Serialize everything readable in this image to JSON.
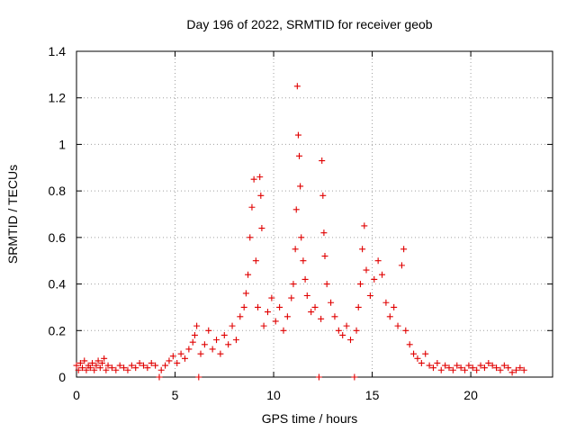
{
  "chart_data": {
    "type": "scatter",
    "title": "Day 196 of 2022, SRMTID for receiver geob",
    "xlabel": "GPS time / hours",
    "ylabel": "SRMTID / TECUs",
    "xlim": [
      0,
      24.15
    ],
    "ylim": [
      0,
      1.4
    ],
    "xticks": [
      0,
      5,
      10,
      15,
      20
    ],
    "xtick_labels": [
      "0",
      "5",
      "10",
      "15",
      "20"
    ],
    "yticks": [
      0,
      0.2,
      0.4,
      0.6,
      0.8,
      1.0,
      1.2,
      1.4
    ],
    "ytick_labels": [
      "0",
      "0.2",
      "0.4",
      "0.6",
      "0.8",
      "1",
      "1.2",
      "1.4"
    ],
    "grid": true,
    "marker": "+",
    "color": "#e00000",
    "series": [
      {
        "name": "SRMTID",
        "points": [
          [
            0.0,
            0.05
          ],
          [
            0.1,
            0.03
          ],
          [
            0.2,
            0.06
          ],
          [
            0.3,
            0.04
          ],
          [
            0.4,
            0.07
          ],
          [
            0.5,
            0.03
          ],
          [
            0.6,
            0.05
          ],
          [
            0.7,
            0.04
          ],
          [
            0.8,
            0.06
          ],
          [
            0.9,
            0.03
          ],
          [
            1.0,
            0.05
          ],
          [
            1.1,
            0.07
          ],
          [
            1.2,
            0.04
          ],
          [
            1.3,
            0.06
          ],
          [
            1.4,
            0.08
          ],
          [
            1.5,
            0.03
          ],
          [
            1.6,
            0.05
          ],
          [
            1.8,
            0.04
          ],
          [
            2.0,
            0.03
          ],
          [
            2.2,
            0.05
          ],
          [
            2.4,
            0.04
          ],
          [
            2.6,
            0.03
          ],
          [
            2.8,
            0.05
          ],
          [
            3.0,
            0.04
          ],
          [
            3.2,
            0.06
          ],
          [
            3.4,
            0.05
          ],
          [
            3.6,
            0.04
          ],
          [
            3.8,
            0.06
          ],
          [
            4.0,
            0.05
          ],
          [
            4.2,
            0.0
          ],
          [
            4.3,
            0.03
          ],
          [
            4.5,
            0.05
          ],
          [
            4.7,
            0.07
          ],
          [
            4.9,
            0.09
          ],
          [
            5.1,
            0.06
          ],
          [
            5.3,
            0.1
          ],
          [
            5.5,
            0.08
          ],
          [
            5.7,
            0.12
          ],
          [
            5.9,
            0.15
          ],
          [
            6.0,
            0.18
          ],
          [
            6.1,
            0.22
          ],
          [
            6.2,
            0.0
          ],
          [
            6.3,
            0.1
          ],
          [
            6.5,
            0.14
          ],
          [
            6.7,
            0.2
          ],
          [
            6.9,
            0.12
          ],
          [
            7.1,
            0.16
          ],
          [
            7.3,
            0.1
          ],
          [
            7.5,
            0.18
          ],
          [
            7.7,
            0.14
          ],
          [
            7.9,
            0.22
          ],
          [
            8.1,
            0.16
          ],
          [
            8.3,
            0.26
          ],
          [
            8.5,
            0.3
          ],
          [
            8.6,
            0.36
          ],
          [
            8.7,
            0.44
          ],
          [
            8.8,
            0.6
          ],
          [
            8.9,
            0.73
          ],
          [
            9.0,
            0.85
          ],
          [
            9.1,
            0.5
          ],
          [
            9.2,
            0.3
          ],
          [
            9.3,
            0.86
          ],
          [
            9.35,
            0.78
          ],
          [
            9.4,
            0.64
          ],
          [
            9.5,
            0.22
          ],
          [
            9.7,
            0.28
          ],
          [
            9.9,
            0.34
          ],
          [
            10.1,
            0.24
          ],
          [
            10.3,
            0.3
          ],
          [
            10.5,
            0.2
          ],
          [
            10.7,
            0.26
          ],
          [
            10.9,
            0.34
          ],
          [
            11.0,
            0.4
          ],
          [
            11.1,
            0.55
          ],
          [
            11.15,
            0.72
          ],
          [
            11.2,
            1.25
          ],
          [
            11.25,
            1.04
          ],
          [
            11.3,
            0.95
          ],
          [
            11.35,
            0.82
          ],
          [
            11.4,
            0.6
          ],
          [
            11.5,
            0.5
          ],
          [
            11.6,
            0.42
          ],
          [
            11.7,
            0.35
          ],
          [
            11.9,
            0.28
          ],
          [
            12.1,
            0.3
          ],
          [
            12.3,
            0.0
          ],
          [
            12.4,
            0.25
          ],
          [
            12.45,
            0.93
          ],
          [
            12.5,
            0.78
          ],
          [
            12.55,
            0.62
          ],
          [
            12.6,
            0.52
          ],
          [
            12.7,
            0.4
          ],
          [
            12.9,
            0.32
          ],
          [
            13.1,
            0.26
          ],
          [
            13.3,
            0.2
          ],
          [
            13.5,
            0.18
          ],
          [
            13.7,
            0.22
          ],
          [
            13.9,
            0.16
          ],
          [
            14.1,
            0.0
          ],
          [
            14.2,
            0.2
          ],
          [
            14.3,
            0.3
          ],
          [
            14.4,
            0.4
          ],
          [
            14.5,
            0.55
          ],
          [
            14.6,
            0.65
          ],
          [
            14.7,
            0.46
          ],
          [
            14.9,
            0.35
          ],
          [
            15.1,
            0.42
          ],
          [
            15.3,
            0.5
          ],
          [
            15.5,
            0.44
          ],
          [
            15.7,
            0.32
          ],
          [
            15.9,
            0.26
          ],
          [
            16.1,
            0.3
          ],
          [
            16.3,
            0.22
          ],
          [
            16.5,
            0.48
          ],
          [
            16.6,
            0.55
          ],
          [
            16.7,
            0.2
          ],
          [
            16.9,
            0.14
          ],
          [
            17.1,
            0.1
          ],
          [
            17.3,
            0.08
          ],
          [
            17.5,
            0.06
          ],
          [
            17.7,
            0.1
          ],
          [
            17.9,
            0.05
          ],
          [
            18.1,
            0.04
          ],
          [
            18.3,
            0.06
          ],
          [
            18.5,
            0.03
          ],
          [
            18.7,
            0.05
          ],
          [
            18.9,
            0.04
          ],
          [
            19.1,
            0.03
          ],
          [
            19.3,
            0.05
          ],
          [
            19.5,
            0.04
          ],
          [
            19.7,
            0.03
          ],
          [
            19.9,
            0.05
          ],
          [
            20.1,
            0.04
          ],
          [
            20.3,
            0.03
          ],
          [
            20.5,
            0.05
          ],
          [
            20.7,
            0.04
          ],
          [
            20.9,
            0.06
          ],
          [
            21.1,
            0.05
          ],
          [
            21.3,
            0.04
          ],
          [
            21.5,
            0.03
          ],
          [
            21.7,
            0.05
          ],
          [
            21.9,
            0.04
          ],
          [
            22.1,
            0.02
          ],
          [
            22.3,
            0.03
          ],
          [
            22.5,
            0.04
          ],
          [
            22.7,
            0.03
          ]
        ]
      }
    ]
  }
}
